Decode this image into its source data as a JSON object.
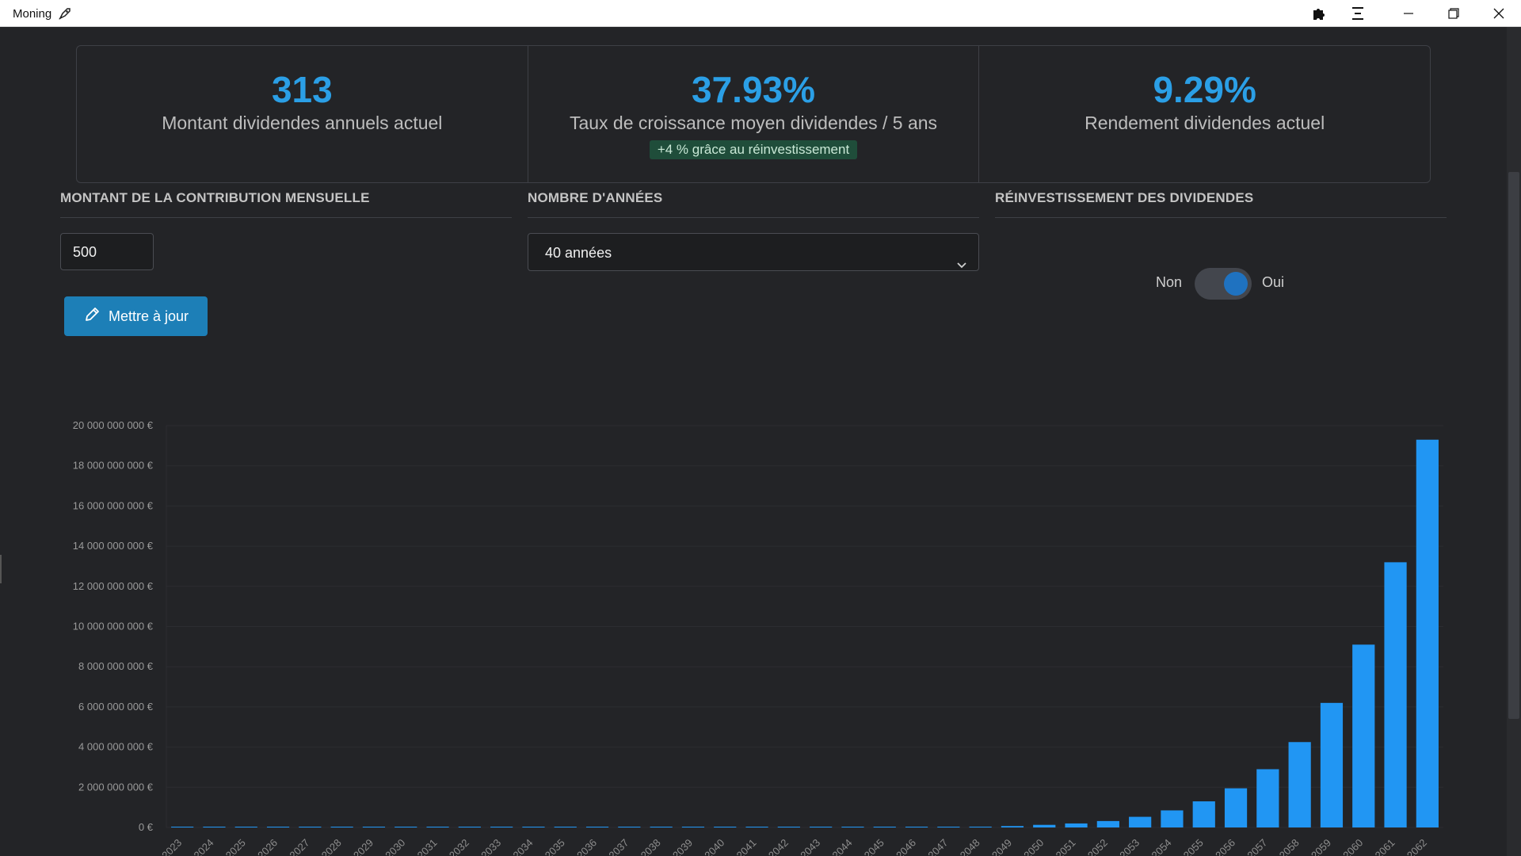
{
  "window": {
    "title": "Moning"
  },
  "stats": [
    {
      "value": "313",
      "label": "Montant dividendes annuels actuel",
      "badge": ""
    },
    {
      "value": "37.93%",
      "label": "Taux de croissance moyen dividendes / 5 ans",
      "badge": "+4 % grâce au réinvestissement"
    },
    {
      "value": "9.29%",
      "label": "Rendement dividendes actuel",
      "badge": ""
    }
  ],
  "controls": {
    "contribution_title": "MONTANT DE LA CONTRIBUTION MENSUELLE",
    "contribution_value": "500",
    "years_title": "NOMBRE D'ANNÉES",
    "years_value": "40 années",
    "reinvest_title": "RÉINVESTISSEMENT DES DIVIDENDES",
    "toggle_off": "Non",
    "toggle_on": "Oui",
    "reinvest_enabled": true,
    "update_button": "Mettre à jour"
  },
  "colors": {
    "accent": "#2b9fe6",
    "bar": "#2196f3",
    "badge_bg": "#1f4d3a"
  },
  "chart_data": {
    "type": "bar",
    "title": "",
    "xlabel": "",
    "ylabel": "",
    "ylim": [
      0,
      20000000000
    ],
    "yticks": [
      "0 €",
      "2 000 000 000 €",
      "4 000 000 000 €",
      "6 000 000 000 €",
      "8 000 000 000 €",
      "10 000 000 000 €",
      "12 000 000 000 €",
      "14 000 000 000 €",
      "16 000 000 000 €",
      "18 000 000 000 €",
      "20 000 000 000 €"
    ],
    "categories": [
      "2023",
      "2024",
      "2025",
      "2026",
      "2027",
      "2028",
      "2029",
      "2030",
      "2031",
      "2032",
      "2033",
      "2034",
      "2035",
      "2036",
      "2037",
      "2038",
      "2039",
      "2040",
      "2041",
      "2042",
      "2043",
      "2044",
      "2045",
      "2046",
      "2047",
      "2048",
      "2049",
      "2050",
      "2051",
      "2052",
      "2053",
      "2054",
      "2055",
      "2056",
      "2057",
      "2058",
      "2059",
      "2060",
      "2061",
      "2062"
    ],
    "values": [
      0,
      0,
      0,
      0,
      0,
      0,
      0,
      0,
      0,
      0,
      0,
      0,
      0,
      0,
      0,
      0,
      0,
      0,
      0,
      0,
      0,
      0,
      0,
      0,
      20000000,
      40000000,
      70000000,
      130000000,
      200000000,
      320000000,
      530000000,
      850000000,
      1300000000,
      1950000000,
      2900000000,
      4250000000,
      6200000000,
      9100000000,
      13200000000,
      19300000000
    ],
    "grid": true
  }
}
